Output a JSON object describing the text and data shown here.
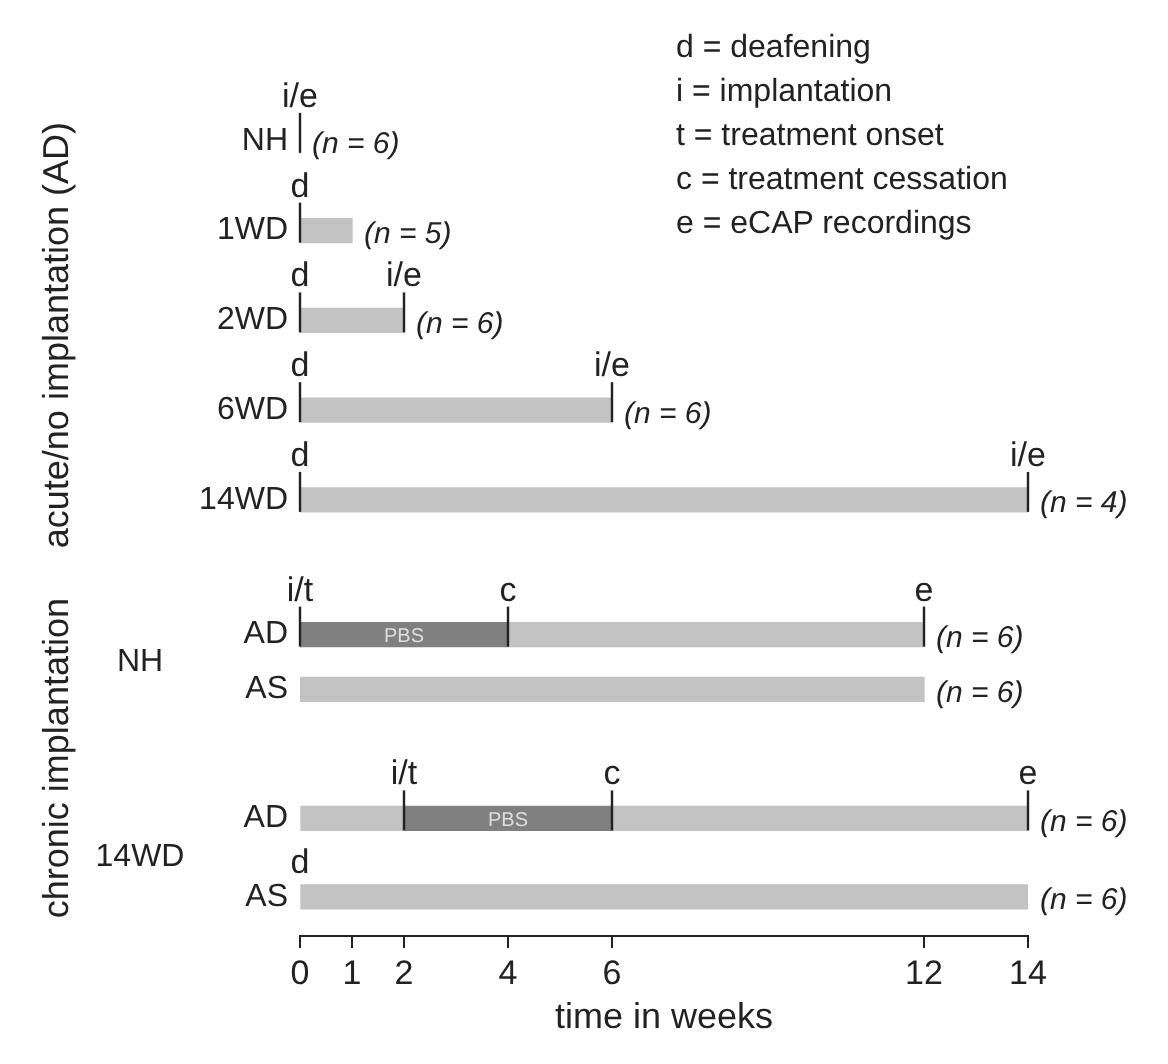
{
  "chart_data": [
    {
      "type": "bar",
      "orientation": "horizontal",
      "stacked": true,
      "ylabel": "acute/no implantation (AD)",
      "xlim": [
        0,
        14
      ],
      "tick_labels": "y",
      "categories": [
        "NH",
        "1WD",
        "2WD",
        "6WD",
        "14WD"
      ],
      "series": [
        {
          "color": "#c3c3c3",
          "values": [
            0,
            1,
            2,
            6,
            14
          ]
        }
      ],
      "annotations": [
        "d = deafening",
        "i = implantation",
        "t = treatment onset",
        "c = treatment cessation",
        "e = eCAP recordings",
        {
          "text": "i/e",
          "x": 0,
          "y": "NH"
        },
        {
          "text": "(n = 6)",
          "x": 0,
          "y": "NH"
        },
        {
          "text": "d",
          "x": 0,
          "y": "1WD"
        },
        {
          "text": "(n = 5)",
          "x": 1,
          "y": "1WD"
        },
        {
          "text": "d",
          "x": 0,
          "y": "2WD"
        },
        {
          "text": "i/e",
          "x": 2,
          "y": "2WD"
        },
        {
          "text": "(n = 6)",
          "x": 2,
          "y": "2WD"
        },
        {
          "text": "d",
          "x": 0,
          "y": "6WD"
        },
        {
          "text": "i/e",
          "x": 6,
          "y": "6WD"
        },
        {
          "text": "(n = 6)",
          "x": 6,
          "y": "6WD"
        },
        {
          "text": "d",
          "x": 0,
          "y": "14WD"
        },
        {
          "text": "i/e",
          "x": 14,
          "y": "14WD"
        },
        {
          "text": "(n = 4)",
          "x": 14,
          "y": "14WD"
        }
      ]
    },
    {
      "type": "bar",
      "orientation": "horizontal",
      "stacked": true,
      "ylabel": "chronic implantation",
      "xlim": [
        0,
        14
      ],
      "tick_labels": "y",
      "categories": [
        "AD",
        "AS"
      ],
      "series": [
        {
          "color": "#c3c3c3",
          "values": [
            0,
            12
          ]
        },
        {
          "name": "PBS",
          "color": "#808080",
          "values": [
            4,
            null
          ]
        },
        {
          "color": "#c3c3c3",
          "values": [
            8,
            null
          ]
        }
      ],
      "annotations": [
        "NH",
        {
          "text": "i/t",
          "x": 0,
          "y": "AD"
        },
        {
          "text": "c",
          "x": 4,
          "y": "AD"
        },
        {
          "text": "e",
          "x": 12,
          "y": "AD"
        },
        {
          "text": "(n = 6)",
          "x": 12,
          "y": "AD"
        },
        {
          "text": "(n = 6)",
          "x": 12,
          "y": "AS"
        }
      ]
    },
    {
      "type": "bar",
      "orientation": "horizontal",
      "stacked": true,
      "xlabel": "time in weeks",
      "xlim": [
        0,
        14
      ],
      "xticks": [
        0,
        1,
        2,
        4,
        6,
        12,
        14
      ],
      "categories": [
        "AD",
        "AS"
      ],
      "series": [
        {
          "color": "#c3c3c3",
          "values": [
            2,
            14
          ]
        },
        {
          "name": "PBS",
          "color": "#808080",
          "values": [
            4,
            null
          ]
        },
        {
          "color": "#c3c3c3",
          "values": [
            8,
            null
          ]
        }
      ],
      "annotations": [
        "14WD",
        "d",
        {
          "text": "i/t",
          "x": 2,
          "y": "AD"
        },
        {
          "text": "c",
          "x": 6,
          "y": "AD"
        },
        {
          "text": "e",
          "x": 14,
          "y": "AD"
        },
        {
          "text": "(n = 6)",
          "x": 14,
          "y": "AD"
        },
        {
          "text": "(n = 6)",
          "x": 14,
          "y": "AS"
        }
      ]
    }
  ]
}
